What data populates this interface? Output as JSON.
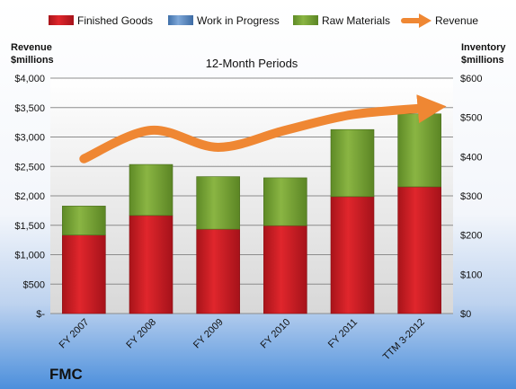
{
  "company": "FMC",
  "colors": {
    "finished_goods": "#c0181c",
    "work_in_progress": "#4f81bd",
    "raw_materials": "#77a033",
    "revenue": "#ef8733"
  },
  "chart_data": {
    "type": "bar",
    "subtitle": "12-Month Periods",
    "ylabel_left": [
      "Revenue",
      "$millions"
    ],
    "ylabel_right": [
      "Inventory",
      "$millions"
    ],
    "categories": [
      "FY 2007",
      "FY 2008",
      "FY 2009",
      "FY 2010",
      "FY 2011",
      "TTM 3-2012"
    ],
    "left_axis": {
      "ylim": [
        0,
        4000
      ],
      "ticks": [
        0,
        500,
        1000,
        1500,
        2000,
        2500,
        3000,
        3500,
        4000
      ],
      "tick_labels": [
        "$-",
        "$500",
        "$1,000",
        "$1,500",
        "$2,000",
        "$2,500",
        "$3,000",
        "$3,500",
        "$4,000"
      ]
    },
    "right_axis": {
      "ylim": [
        0,
        600
      ],
      "ticks": [
        0,
        100,
        200,
        300,
        400,
        500,
        600
      ],
      "tick_labels": [
        "$0",
        "$100",
        "$200",
        "$300",
        "$400",
        "$500",
        "$600"
      ]
    },
    "stacked": true,
    "grid": true,
    "legend_position": "top",
    "series": [
      {
        "name": "Finished Goods",
        "axis": "right",
        "type": "bar",
        "color": "#c0181c",
        "values": [
          200,
          250,
          215,
          224,
          298,
          323
        ]
      },
      {
        "name": "Work in Progress",
        "axis": "right",
        "type": "bar",
        "color": "#4f81bd",
        "values": [
          0,
          0,
          0,
          0,
          0,
          0
        ]
      },
      {
        "name": "Raw Materials",
        "axis": "right",
        "type": "bar",
        "color": "#77a033",
        "values": [
          74,
          130,
          134,
          122,
          171,
          186
        ]
      },
      {
        "name": "Revenue",
        "axis": "left",
        "type": "line",
        "color": "#ef8733",
        "values": [
          2630,
          3115,
          2825,
          3115,
          3380,
          3500
        ]
      }
    ]
  }
}
